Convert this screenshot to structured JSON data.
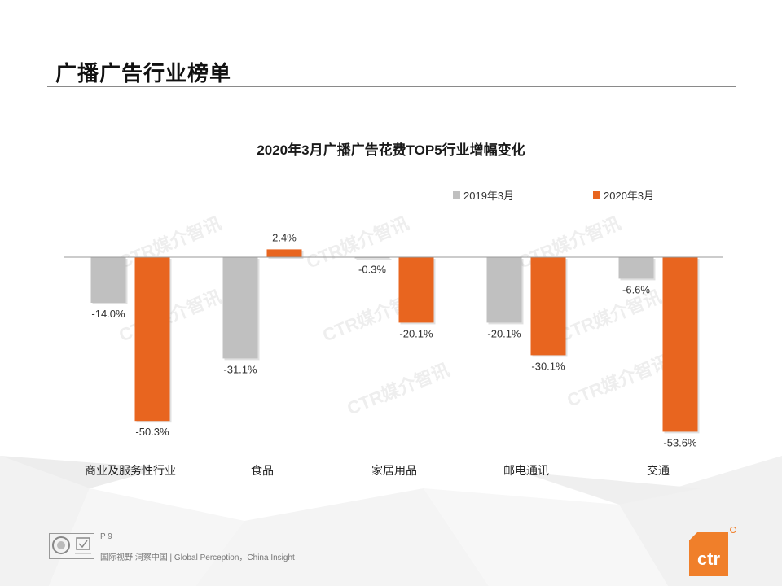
{
  "header": {
    "title": "广播广告行业榜单"
  },
  "colors": {
    "series_2019": "#c0c0c0",
    "series_2020": "#e8651f",
    "logo": "#f07f2a"
  },
  "chart_data": {
    "type": "bar",
    "title": "2020年3月广播广告花费TOP5行业增幅变化",
    "categories": [
      "商业及服务性行业",
      "食品",
      "家居用品",
      "邮电通讯",
      "交通"
    ],
    "series": [
      {
        "name": "2019年3月",
        "values": [
          -14.0,
          -31.1,
          -0.3,
          -20.1,
          -6.6
        ],
        "labels": [
          "-14.0%",
          "-31.1%",
          "-0.3%",
          "-20.1%",
          "-6.6%"
        ]
      },
      {
        "name": "2020年3月",
        "values": [
          -50.3,
          2.4,
          -20.1,
          -30.1,
          -53.6
        ],
        "labels": [
          "-50.3%",
          "2.4%",
          "-20.1%",
          "-30.1%",
          "-53.6%"
        ]
      }
    ],
    "ylim": [
      -55,
      5
    ],
    "xlabel": "",
    "ylabel": "",
    "legend": "top-right",
    "watermark": "CTR媒介智讯"
  },
  "footer": {
    "page": "P 9",
    "slogan": "国际视野 洞察中国 | Global Perception，China Insight",
    "logo_text": "ctr"
  }
}
